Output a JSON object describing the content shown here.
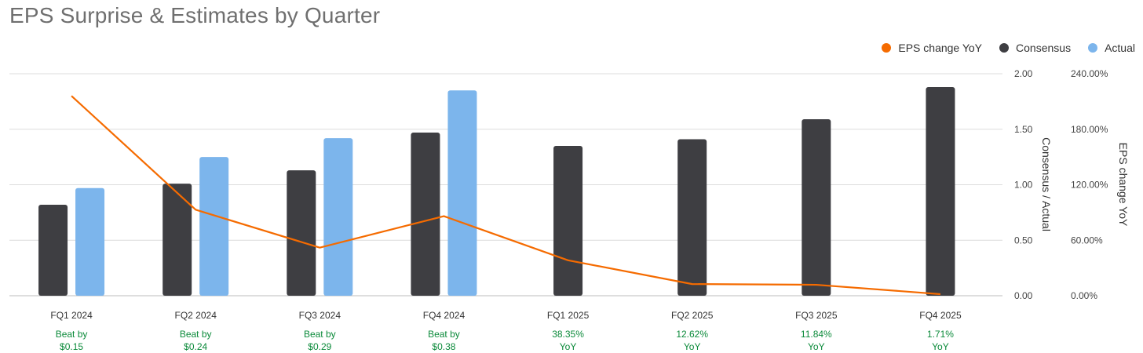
{
  "title": "EPS Surprise & Estimates by Quarter",
  "legend": [
    {
      "label": "EPS change YoY",
      "color": "#f56b00"
    },
    {
      "label": "Consensus",
      "color": "#3e3e42"
    },
    {
      "label": "Actual",
      "color": "#7cb5ec"
    }
  ],
  "chart_data": {
    "type": "bar",
    "title": "EPS Surprise & Estimates by Quarter",
    "categories": [
      "FQ1 2024",
      "FQ2 2024",
      "FQ3 2024",
      "FQ4 2024",
      "FQ1 2025",
      "FQ2 2025",
      "FQ3 2025",
      "FQ4 2025"
    ],
    "series": [
      {
        "name": "Consensus",
        "type": "bar",
        "axis": "left",
        "color": "#3e3e42",
        "values": [
          0.82,
          1.01,
          1.13,
          1.47,
          1.35,
          1.41,
          1.59,
          1.88
        ]
      },
      {
        "name": "Actual",
        "type": "bar",
        "axis": "left",
        "color": "#7cb5ec",
        "values": [
          0.97,
          1.25,
          1.42,
          1.85,
          null,
          null,
          null,
          null
        ]
      },
      {
        "name": "EPS change YoY",
        "type": "line",
        "axis": "right",
        "color": "#f56b00",
        "values": [
          216,
          93,
          52,
          86,
          38.35,
          12.62,
          11.84,
          1.71
        ]
      }
    ],
    "ylabel": "Consensus / Actual",
    "ylim": [
      0,
      2
    ],
    "yticks": [
      "0.00",
      "0.50",
      "1.00",
      "1.50",
      "2.00"
    ],
    "y2label": "EPS change YoY",
    "y2lim": [
      0,
      240
    ],
    "y2ticks": [
      "0.00%",
      "60.00%",
      "120.00%",
      "180.00%",
      "240.00%"
    ],
    "annotations": [
      [
        "Beat by",
        "$0.15"
      ],
      [
        "Beat by",
        "$0.24"
      ],
      [
        "Beat by",
        "$0.29"
      ],
      [
        "Beat by",
        "$0.38"
      ],
      [
        "38.35%",
        "YoY"
      ],
      [
        "12.62%",
        "YoY"
      ],
      [
        "11.84%",
        "YoY"
      ],
      [
        "1.71%",
        "YoY"
      ]
    ],
    "annotation_color": "#0b8a3a",
    "grid": true,
    "legend_position": "top-right"
  }
}
